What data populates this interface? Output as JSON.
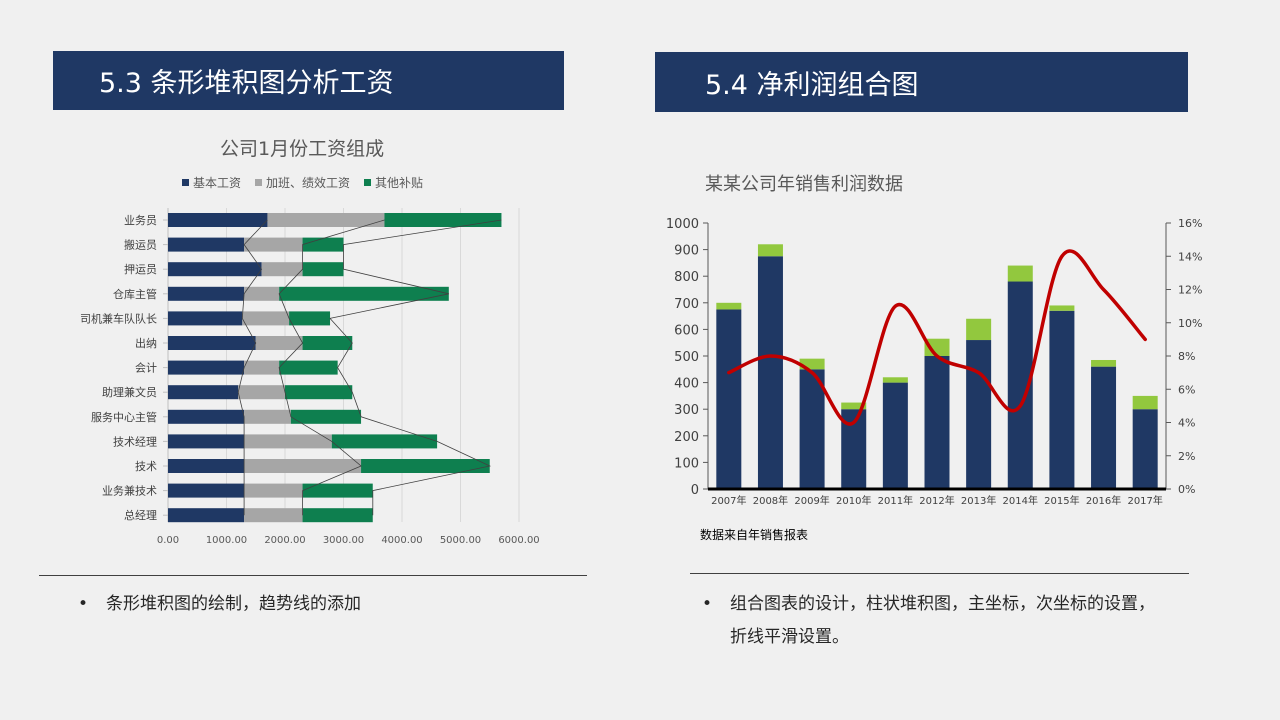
{
  "left_section": {
    "header": "5.3 条形堆积图分析工资",
    "bullet": "条形堆积图的绘制，趋势线的添加"
  },
  "right_section": {
    "header": "5.4 净利润组合图",
    "source": "数据来自年销售报表",
    "bullet": "组合图表的设计，柱状堆积图，主坐标，次坐标的设置，折线平滑设置。"
  },
  "bullet_symbol": "•",
  "colors": {
    "header_bg": "#1f3864",
    "navy": "#1f3864",
    "gray": "#a6a6a6",
    "green": "#0e7f4f",
    "lime": "#92c83e",
    "red": "#c00000"
  },
  "chart_data": [
    {
      "type": "bar",
      "orientation": "horizontal",
      "stacked": true,
      "title": "公司1月份工资组成",
      "categories": [
        "业务员",
        "搬运员",
        "押运员",
        "仓库主管",
        "司机兼车队队长",
        "出纳",
        "会计",
        "助理兼文员",
        "服务中心主管",
        "技术经理",
        "技术",
        "业务兼技术",
        "总经理"
      ],
      "series": [
        {
          "name": "基本工资",
          "color": "#1f3864",
          "values": [
            1700,
            1300,
            1600,
            1300,
            1270,
            1500,
            1300,
            1200,
            1300,
            1300,
            1300,
            1300,
            1300
          ]
        },
        {
          "name": "加班、绩效工资",
          "color": "#a6a6a6",
          "values": [
            2000,
            1000,
            700,
            600,
            800,
            800,
            600,
            800,
            800,
            1500,
            2000,
            1000,
            1000
          ]
        },
        {
          "name": "其他补贴",
          "color": "#0e7f4f",
          "values": [
            2000,
            700,
            700,
            2900,
            700,
            850,
            1000,
            1150,
            1200,
            1800,
            2200,
            1200,
            1200
          ]
        }
      ],
      "xlim": [
        0,
        6000
      ],
      "x_ticks": [
        "0.00",
        "1000.00",
        "2000.00",
        "3000.00",
        "4000.00",
        "5000.00",
        "6000.00"
      ],
      "legend_position": "top",
      "trendline": "connects outer end of each stacked segment across categories"
    },
    {
      "type": "bar+line",
      "title": "某某公司年销售利润数据",
      "categories": [
        "2007年",
        "2008年",
        "2009年",
        "2010年",
        "2011年",
        "2012年",
        "2013年",
        "2014年",
        "2015年",
        "2016年",
        "2017年"
      ],
      "series": [
        {
          "color": "#1f3864",
          "axis": "primary",
          "values": [
            675,
            875,
            450,
            300,
            400,
            500,
            560,
            780,
            670,
            460,
            300
          ]
        },
        {
          "color": "#92c83e",
          "axis": "primary",
          "values": [
            25,
            45,
            40,
            25,
            20,
            65,
            80,
            60,
            20,
            25,
            50
          ]
        },
        {
          "color": "#c00000",
          "axis": "secondary",
          "type": "line",
          "smooth": true,
          "values": [
            0.07,
            0.08,
            0.07,
            0.04,
            0.11,
            0.08,
            0.07,
            0.05,
            0.14,
            0.12,
            0.09
          ]
        }
      ],
      "ylim": [
        0,
        1000
      ],
      "y_ticks": [
        "0",
        "100",
        "200",
        "300",
        "400",
        "500",
        "600",
        "700",
        "800",
        "900",
        "1000"
      ],
      "y2lim": [
        0,
        0.16
      ],
      "y2_ticks": [
        "0%",
        "2%",
        "4%",
        "6%",
        "8%",
        "10%",
        "12%",
        "14%",
        "16%"
      ]
    }
  ]
}
